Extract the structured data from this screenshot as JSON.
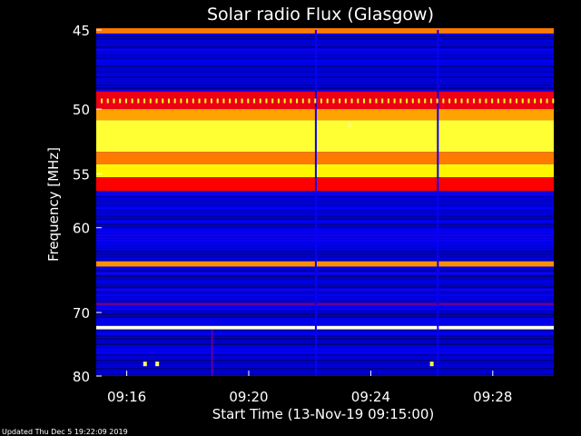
{
  "chart_data": {
    "type": "heatmap",
    "title": "Solar radio Flux (Glasgow)",
    "xlabel": "Start Time (13-Nov-19 09:15:00)",
    "ylabel": "Frequency [MHz]",
    "footer": "Updated Thu Dec  5 19:22:09 2019",
    "x_ticks": [
      "09:16",
      "09:20",
      "09:24",
      "09:28"
    ],
    "x_tick_minutes": [
      1,
      5,
      9,
      13
    ],
    "y_ticks": [
      45,
      50,
      55,
      60,
      70,
      80
    ],
    "ylim": [
      45,
      80
    ],
    "xlim_minutes": [
      0,
      15
    ],
    "y_scale": "reciprocal",
    "colormap": [
      "#000000",
      "#0000ff",
      "#ff0000",
      "#ffff00",
      "#ffffff"
    ],
    "emission_bands": [
      {
        "f_min": 44.9,
        "f_max": 45.2,
        "level": 0.62
      },
      {
        "f_min": 48.8,
        "f_max": 50.0,
        "level": 0.48
      },
      {
        "f_min": 50.0,
        "f_max": 50.8,
        "level": 0.66
      },
      {
        "f_min": 50.8,
        "f_max": 53.2,
        "level": 0.8
      },
      {
        "f_min": 53.2,
        "f_max": 54.2,
        "level": 0.62
      },
      {
        "f_min": 54.2,
        "f_max": 55.3,
        "level": 0.74
      },
      {
        "f_min": 55.3,
        "f_max": 56.5,
        "level": 0.5
      },
      {
        "f_min": 63.6,
        "f_max": 64.2,
        "level": 0.64
      },
      {
        "f_min": 68.7,
        "f_max": 69.0,
        "level": 0.36
      },
      {
        "f_min": 71.9,
        "f_max": 72.4,
        "level": 0.98
      }
    ],
    "periodic_emission": {
      "frequency": 49.4,
      "period_minutes": 0.2,
      "level": 0.78
    },
    "bursts": [
      {
        "minute": 1.6,
        "frequency": 77.8,
        "level": 0.85
      },
      {
        "minute": 2.0,
        "frequency": 77.8,
        "level": 0.85
      },
      {
        "minute": 11.0,
        "frequency": 77.8,
        "level": 0.8
      },
      {
        "minute": 8.3,
        "frequency": 51.1,
        "level": 0.85
      }
    ],
    "vertical_features": [
      {
        "minute": 3.8,
        "f_min": 72.5,
        "f_max": 80,
        "level": 0.34
      },
      {
        "minute": 7.2,
        "f_min": 45,
        "f_max": 80,
        "level": 0.26
      },
      {
        "minute": 11.2,
        "f_min": 45,
        "f_max": 80,
        "level": 0.26
      }
    ]
  },
  "colors": {
    "background": "#000000",
    "text": "#ffffff"
  }
}
